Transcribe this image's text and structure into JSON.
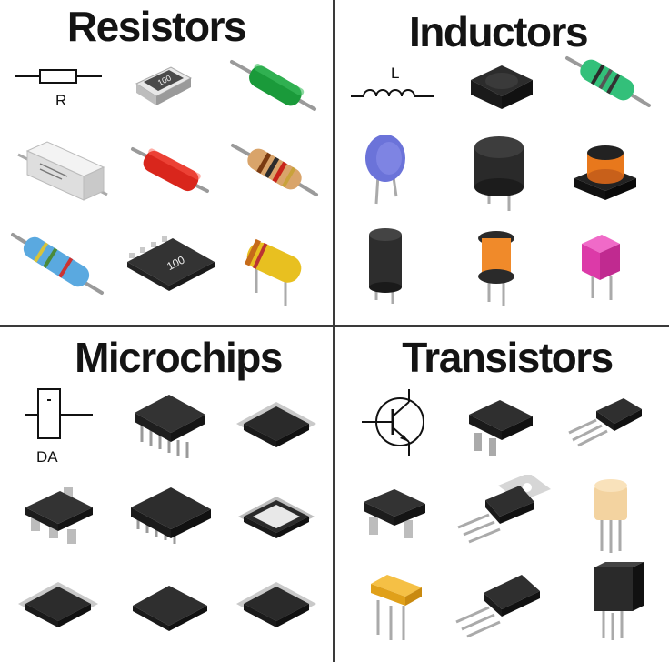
{
  "quadrants": {
    "resistors": {
      "title": "Resistors",
      "symbol_label": "R",
      "smd_marking": "100",
      "network_marking": "100"
    },
    "inductors": {
      "title": "Inductors",
      "symbol_label": "L"
    },
    "microchips": {
      "title": "Microchips",
      "symbol_label": "DA"
    },
    "transistors": {
      "title": "Transistors"
    }
  },
  "colors": {
    "divider": "#3a3a3a",
    "title": "#141414"
  }
}
